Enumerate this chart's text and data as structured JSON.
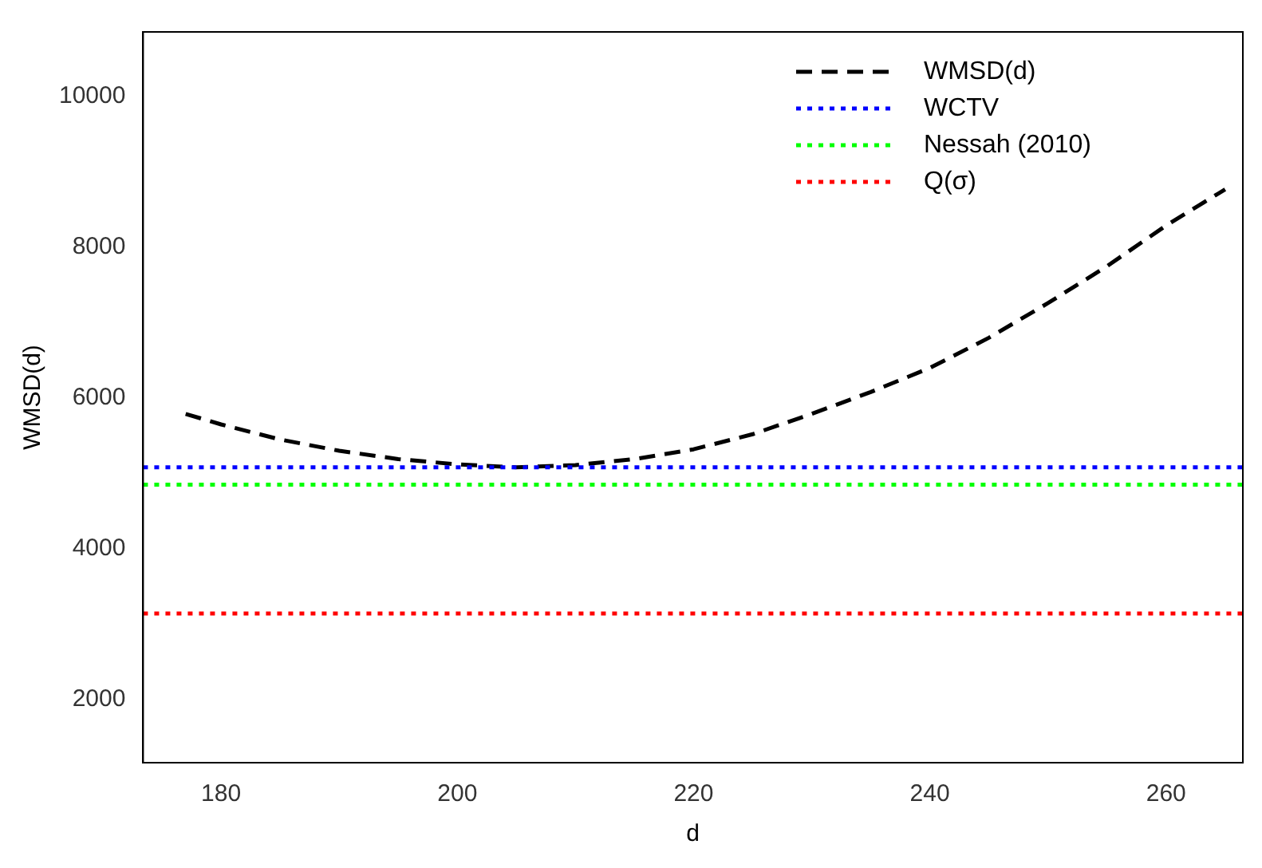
{
  "chart_data": {
    "type": "line",
    "xlabel": "d",
    "ylabel": "WMSD(d)",
    "x": [
      177,
      180,
      185,
      190,
      195,
      200,
      205,
      210,
      215,
      220,
      225,
      230,
      235,
      240,
      245,
      250,
      255,
      260,
      265
    ],
    "series": [
      {
        "name": "WMSD(d)",
        "color": "#000000",
        "line_style": "dashed",
        "values": [
          5790,
          5650,
          5450,
          5300,
          5190,
          5120,
          5080,
          5110,
          5190,
          5320,
          5520,
          5790,
          6080,
          6400,
          6800,
          7260,
          7750,
          8290,
          8770
        ]
      }
    ],
    "ref_lines": [
      {
        "axis": "y",
        "value": 5080,
        "label": "WCTV",
        "color": "#0000ff",
        "line_style": "dotted"
      },
      {
        "axis": "y",
        "value": 4850,
        "label": "Nessah (2010)",
        "color": "#00ff00",
        "line_style": "dotted"
      },
      {
        "axis": "y",
        "value": 3140,
        "label": "Q(σ)",
        "color": "#ff0000",
        "line_style": "dotted"
      }
    ],
    "xlim": [
      173.4,
      266.5
    ],
    "ylim": [
      1160,
      10860
    ],
    "xticks": [
      180,
      200,
      220,
      240,
      260
    ],
    "yticks": [
      2000,
      4000,
      6000,
      8000,
      10000
    ],
    "grid": false,
    "legend": "top right",
    "marker": "none"
  }
}
